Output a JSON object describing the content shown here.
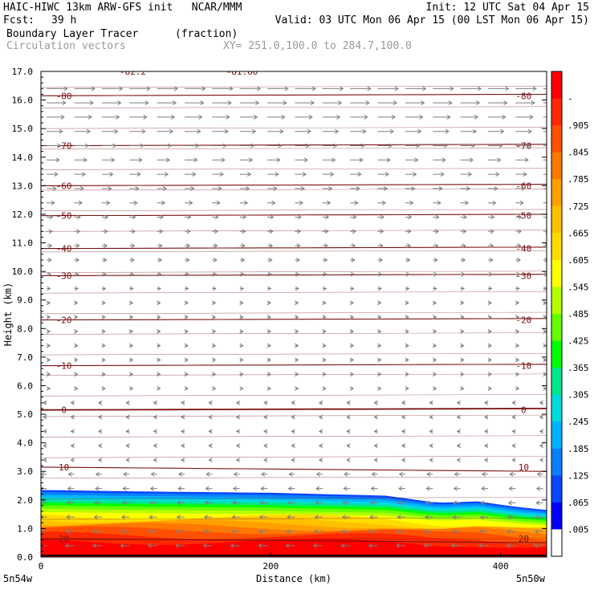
{
  "header": {
    "model": "HAIC-HIWC 13km ARW-GFS init   NCAR/MMM",
    "init": "Init: 12 UTC Sat 04 Apr 15",
    "fcst_label": "Fcst:",
    "fcst_value": "39 h",
    "valid": "Valid: 03 UTC Mon 06 Apr 15 (00 LST Mon 06 Apr 15)",
    "field": "Boundary Layer Tracer",
    "units": "(fraction)",
    "vectors": "Circulation vectors",
    "xsec": "XY= 251.0,100.0 to 284.7,100.0"
  },
  "colors": {
    "contour": "#7a1010",
    "vector": "#7f7f7f"
  },
  "chart_data": {
    "type": "heatmap",
    "ylabel": "Height (km)",
    "xlabel": "Distance (km)",
    "xlim": [
      0,
      440
    ],
    "ylim": [
      0,
      17
    ],
    "yticks": [
      "0.0",
      "1.0",
      "2.0",
      "3.0",
      "4.0",
      "5.0",
      "6.0",
      "7.0",
      "8.0",
      "9.0",
      "10.0",
      "11.0",
      "12.0",
      "13.0",
      "14.0",
      "15.0",
      "16.0",
      "17.0"
    ],
    "xticks": [
      {
        "value": 0,
        "label": "0"
      },
      {
        "value": 200,
        "label": "200"
      },
      {
        "value": 400,
        "label": "400"
      }
    ],
    "x_endpoints": [
      "5n54w",
      "5n50w"
    ],
    "colorbar": {
      "levels": [
        ".005",
        ".065",
        ".125",
        ".185",
        ".245",
        ".305",
        ".365",
        ".425",
        ".485",
        ".545",
        ".605",
        ".665",
        ".725",
        ".785",
        ".845",
        ".905",
        "-"
      ],
      "colors": [
        "#ffffff",
        "#0000ff",
        "#0a46ff",
        "#0a80ff",
        "#00b4ff",
        "#00dcdc",
        "#00e68c",
        "#00ff00",
        "#64ff00",
        "#b4ff00",
        "#ffff00",
        "#ffdc00",
        "#ffc000",
        "#ffa000",
        "#ff7800",
        "#ff5000",
        "#ff2800",
        "#ff0000"
      ]
    },
    "bl_tracer_top_km": [
      {
        "x": 0,
        "top": 2.35
      },
      {
        "x": 80,
        "top": 2.3
      },
      {
        "x": 200,
        "top": 2.25
      },
      {
        "x": 300,
        "top": 2.15
      },
      {
        "x": 345,
        "top": 1.9
      },
      {
        "x": 380,
        "top": 1.95
      },
      {
        "x": 415,
        "top": 1.75
      },
      {
        "x": 440,
        "top": 1.65
      }
    ],
    "temperature_contours": [
      {
        "value": -80,
        "label": "-80",
        "height_km": 16.15
      },
      {
        "value": -70,
        "label": "-70",
        "height_km": 14.4
      },
      {
        "value": -60,
        "label": "-60",
        "height_km": 13.0
      },
      {
        "value": -50,
        "label": "-50",
        "height_km": 11.95
      },
      {
        "value": -40,
        "label": "-40",
        "height_km": 10.8
      },
      {
        "value": -30,
        "label": "-30",
        "height_km": 9.85
      },
      {
        "value": -20,
        "label": "-20",
        "height_km": 8.3
      },
      {
        "value": -10,
        "label": "-10",
        "height_km": 6.7
      },
      {
        "value": 0,
        "label": "0",
        "height_km": 5.15
      },
      {
        "value": 10,
        "label": "10",
        "height_km": 3.15
      },
      {
        "value": 20,
        "label": "20",
        "height_km": 0.65
      }
    ],
    "top_labels": [
      "-82.2",
      "-81.60"
    ]
  }
}
